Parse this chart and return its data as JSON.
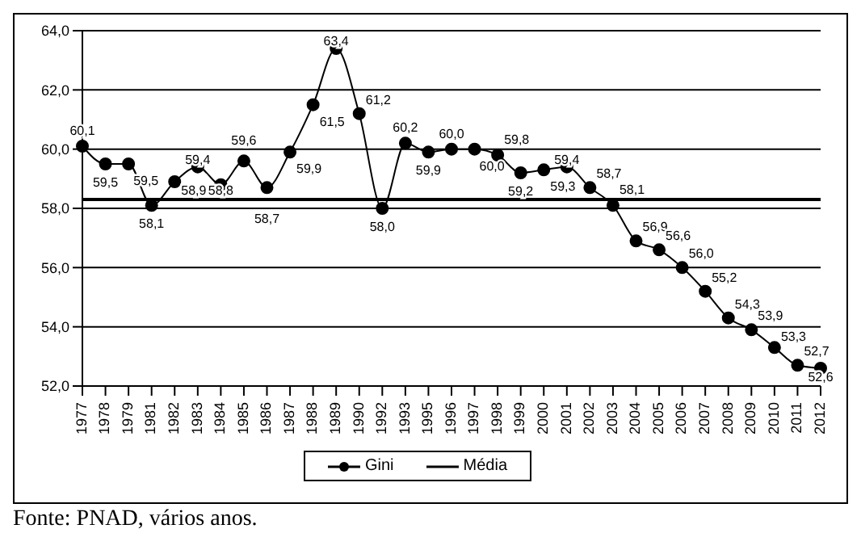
{
  "chart_data": {
    "type": "line",
    "categories": [
      "1977",
      "1978",
      "1979",
      "1981",
      "1982",
      "1983",
      "1984",
      "1985",
      "1986",
      "1987",
      "1988",
      "1989",
      "1990",
      "1992",
      "1993",
      "1995",
      "1996",
      "1997",
      "1998",
      "1999",
      "2000",
      "2001",
      "2002",
      "2003",
      "2004",
      "2005",
      "2006",
      "2007",
      "2008",
      "2009",
      "2010",
      "2011",
      "2012"
    ],
    "series": [
      {
        "name": "Gini",
        "color": "#000000",
        "marker": "circle",
        "data_labels": true,
        "value_labels": [
          "60,1",
          "59,5",
          "59,5",
          "58,1",
          "58,9",
          "59,4",
          "58,8",
          "59,6",
          "58,7",
          "59,9",
          "61,5",
          "63,4",
          "61,2",
          "58,0",
          "60,2",
          "59,9",
          "60,0",
          "60,0",
          "59,8",
          "59,2",
          "59,3",
          "59,4",
          "58,7",
          "58,1",
          "56,9",
          "56,6",
          "56,0",
          "55,2",
          "54,3",
          "53,9",
          "53,3",
          "52,7",
          "52,6"
        ],
        "values": [
          60.1,
          59.5,
          59.5,
          58.1,
          58.9,
          59.4,
          58.8,
          59.6,
          58.7,
          59.9,
          61.5,
          63.4,
          61.2,
          58.0,
          60.2,
          59.9,
          60.0,
          60.0,
          59.8,
          59.2,
          59.3,
          59.4,
          58.7,
          58.1,
          56.9,
          56.6,
          56.0,
          55.2,
          54.3,
          53.9,
          53.3,
          52.7,
          52.6
        ]
      },
      {
        "name": "Média",
        "color": "#000000",
        "marker": "none",
        "values": [
          58.3,
          58.3,
          58.3,
          58.3,
          58.3,
          58.3,
          58.3,
          58.3,
          58.3,
          58.3,
          58.3,
          58.3,
          58.3,
          58.3,
          58.3,
          58.3,
          58.3,
          58.3,
          58.3,
          58.3,
          58.3,
          58.3,
          58.3,
          58.3,
          58.3,
          58.3,
          58.3,
          58.3,
          58.3,
          58.3,
          58.3,
          58.3,
          58.3
        ]
      }
    ],
    "ylim": [
      52,
      64
    ],
    "yticks": [
      {
        "value": 52,
        "label": "52,0"
      },
      {
        "value": 54,
        "label": "54,0"
      },
      {
        "value": 56,
        "label": "56,0"
      },
      {
        "value": 58,
        "label": "58,0"
      },
      {
        "value": 60,
        "label": "60,0"
      },
      {
        "value": 62,
        "label": "62,0"
      },
      {
        "value": 64,
        "label": "64,0"
      }
    ],
    "grid": "y",
    "legend": "bottom",
    "annotations": [
      "Fonte: PNAD, vários anos."
    ]
  }
}
